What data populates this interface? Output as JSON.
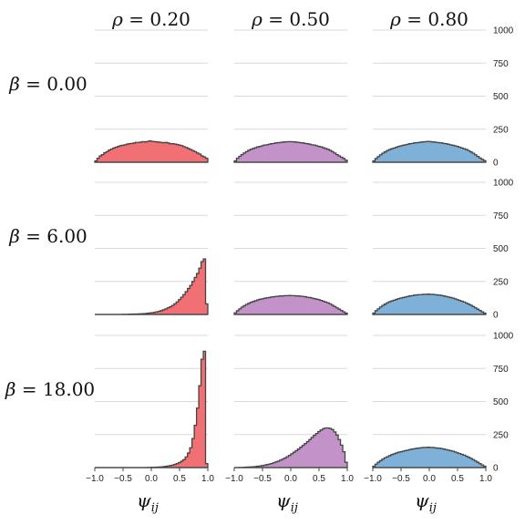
{
  "chart_data": {
    "type": "histogram-grid",
    "column_labels": [
      {
        "sym": "ρ",
        "rel": " = ",
        "val": "0.20"
      },
      {
        "sym": "ρ",
        "rel": " = ",
        "val": "0.50"
      },
      {
        "sym": "ρ",
        "rel": " = ",
        "val": "0.80"
      }
    ],
    "row_labels": [
      {
        "sym": "β",
        "rel": " = ",
        "val": "0.00"
      },
      {
        "sym": "β",
        "rel": " = ",
        "val": "6.00"
      },
      {
        "sym": "β",
        "rel": " = ",
        "val": "18.00"
      }
    ],
    "xlabel": {
      "sym": "ψ",
      "sub": "ij"
    },
    "x_range": [
      -1.0,
      1.0
    ],
    "x_ticks": [
      -1.0,
      -0.5,
      0.0,
      0.5,
      1.0
    ],
    "x_tick_labels": [
      "−1.0",
      "−0.5",
      "0.0",
      "0.5",
      "1.0"
    ],
    "y_range": [
      0,
      1000
    ],
    "y_ticks": [
      0,
      250,
      500,
      750,
      1000
    ],
    "y_tick_labels": [
      "0",
      "250",
      "500",
      "750",
      "1000"
    ],
    "grid": "horizontal",
    "column_colors": [
      "#f07073",
      "#c292c8",
      "#7fb0d8"
    ],
    "bin_width": 0.04,
    "bin_centers": [
      -0.98,
      -0.94,
      -0.9,
      -0.86,
      -0.82,
      -0.78,
      -0.74,
      -0.7,
      -0.66,
      -0.62,
      -0.58,
      -0.54,
      -0.5,
      -0.46,
      -0.42,
      -0.38,
      -0.34,
      -0.3,
      -0.26,
      -0.22,
      -0.18,
      -0.14,
      -0.1,
      -0.06,
      -0.02,
      0.02,
      0.06,
      0.1,
      0.14,
      0.18,
      0.22,
      0.26,
      0.3,
      0.34,
      0.38,
      0.42,
      0.46,
      0.5,
      0.54,
      0.58,
      0.62,
      0.66,
      0.7,
      0.74,
      0.78,
      0.82,
      0.86,
      0.9,
      0.94,
      0.98
    ],
    "panels": [
      [
        {
          "counts": [
            10,
            30,
            48,
            58,
            72,
            80,
            92,
            100,
            108,
            114,
            120,
            126,
            128,
            132,
            138,
            140,
            142,
            146,
            150,
            150,
            152,
            156,
            154,
            158,
            162,
            158,
            156,
            154,
            152,
            150,
            148,
            150,
            146,
            140,
            140,
            138,
            134,
            130,
            126,
            118,
            112,
            104,
            96,
            88,
            80,
            70,
            62,
            48,
            40,
            30
          ]
        },
        {
          "counts": [
            10,
            30,
            45,
            58,
            70,
            80,
            90,
            98,
            104,
            110,
            116,
            120,
            125,
            130,
            132,
            136,
            140,
            142,
            146,
            148,
            150,
            152,
            154,
            155,
            156,
            155,
            154,
            152,
            150,
            148,
            146,
            142,
            140,
            136,
            132,
            130,
            125,
            120,
            116,
            110,
            104,
            98,
            90,
            80,
            70,
            58,
            48,
            38,
            28,
            15
          ]
        },
        {
          "counts": [
            10,
            28,
            42,
            56,
            68,
            78,
            88,
            96,
            102,
            108,
            114,
            120,
            124,
            128,
            132,
            136,
            140,
            142,
            146,
            148,
            150,
            152,
            154,
            156,
            158,
            156,
            154,
            152,
            150,
            148,
            146,
            142,
            140,
            136,
            132,
            128,
            124,
            120,
            114,
            108,
            102,
            96,
            88,
            78,
            68,
            56,
            44,
            32,
            22,
            12
          ]
        }
      ],
      [
        {
          "counts": [
            0,
            0,
            0,
            0,
            0,
            0,
            0,
            0,
            0,
            0,
            0,
            0,
            1,
            1,
            1,
            2,
            2,
            3,
            3,
            4,
            5,
            6,
            7,
            9,
            11,
            13,
            16,
            20,
            24,
            29,
            35,
            42,
            50,
            58,
            68,
            80,
            95,
            112,
            130,
            150,
            172,
            196,
            220,
            250,
            280,
            310,
            350,
            400,
            420,
            80
          ]
        },
        {
          "counts": [
            12,
            28,
            42,
            55,
            66,
            76,
            84,
            92,
            98,
            104,
            110,
            115,
            118,
            122,
            126,
            128,
            132,
            134,
            136,
            138,
            140,
            140,
            142,
            142,
            144,
            142,
            142,
            140,
            140,
            138,
            136,
            134,
            130,
            128,
            124,
            120,
            116,
            112,
            106,
            100,
            94,
            88,
            80,
            70,
            60,
            50,
            40,
            30,
            20,
            10
          ]
        },
        {
          "counts": [
            10,
            28,
            42,
            56,
            68,
            78,
            88,
            96,
            102,
            108,
            114,
            120,
            124,
            128,
            132,
            136,
            140,
            142,
            146,
            148,
            150,
            150,
            152,
            152,
            154,
            152,
            152,
            150,
            148,
            146,
            144,
            140,
            136,
            132,
            128,
            124,
            118,
            112,
            106,
            100,
            94,
            86,
            78,
            70,
            60,
            50,
            40,
            30,
            20,
            10
          ]
        }
      ],
      [
        {
          "counts": [
            0,
            0,
            0,
            0,
            0,
            0,
            0,
            0,
            0,
            0,
            0,
            0,
            0,
            0,
            0,
            0,
            0,
            0,
            0,
            0,
            0,
            0,
            0,
            1,
            1,
            2,
            2,
            3,
            4,
            5,
            7,
            9,
            12,
            15,
            19,
            24,
            30,
            38,
            48,
            60,
            80,
            110,
            150,
            220,
            320,
            450,
            620,
            820,
            880,
            30
          ]
        },
        {
          "counts": [
            0,
            0,
            1,
            1,
            2,
            3,
            4,
            5,
            6,
            8,
            10,
            12,
            15,
            18,
            22,
            26,
            30,
            36,
            42,
            48,
            56,
            64,
            72,
            82,
            92,
            104,
            116,
            128,
            140,
            154,
            168,
            182,
            196,
            212,
            228,
            244,
            258,
            272,
            284,
            294,
            300,
            300,
            296,
            288,
            270,
            246,
            212,
            170,
            120,
            40
          ]
        },
        {
          "counts": [
            10,
            26,
            40,
            52,
            64,
            74,
            82,
            90,
            98,
            104,
            110,
            116,
            120,
            124,
            128,
            132,
            136,
            140,
            142,
            146,
            148,
            150,
            152,
            152,
            154,
            152,
            152,
            150,
            148,
            146,
            144,
            140,
            136,
            132,
            128,
            124,
            118,
            112,
            106,
            100,
            94,
            86,
            78,
            70,
            60,
            50,
            40,
            30,
            20,
            10
          ]
        }
      ]
    ]
  }
}
